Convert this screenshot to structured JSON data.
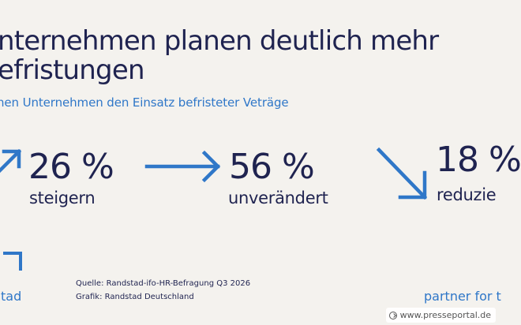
{
  "colors": {
    "background": "#f4f2ee",
    "navy": "#1f2350",
    "accent_blue": "#2f77c8",
    "watermark_bg": "#ffffff"
  },
  "headline": {
    "line1": "nternehmen planen deutlich mehr",
    "line2": "efristungen"
  },
  "subtitle": "nen Unternehmen den Einsatz befristeter Veträge",
  "chart_data": {
    "type": "table",
    "title": "nternehmen planen deutlich mehr efristungen",
    "subtitle": "nen Unternehmen den Einsatz befristeter Veträge",
    "series": [
      {
        "name": "steigern",
        "value": 26,
        "unit": "%",
        "display": "26 %",
        "arrow_direction": "up-right"
      },
      {
        "name": "unverändert",
        "value": 56,
        "unit": "%",
        "display": "56 %",
        "arrow_direction": "right"
      },
      {
        "name": "reduzie",
        "value": 18,
        "unit": "%",
        "display": "18 %",
        "arrow_direction": "down-right"
      }
    ]
  },
  "footer": {
    "source_line": "Quelle: Randstad-ifo-HR-Befragung Q3 2026",
    "graphic_line": "Grafik: Randstad Deutschland",
    "brand_left": "tad",
    "brand_right": "partner for t"
  },
  "watermark": {
    "icon": "presseportal-arrow-circle-icon",
    "text": "www.presseportal.de"
  }
}
